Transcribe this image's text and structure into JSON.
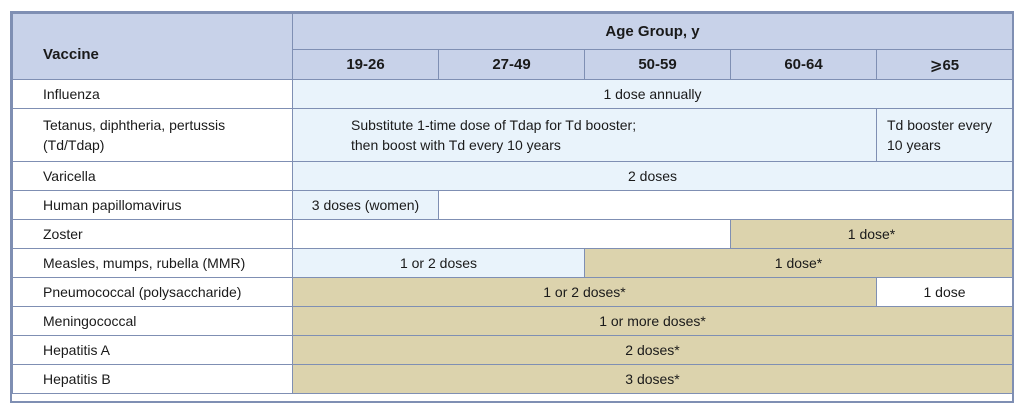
{
  "header": {
    "vaccine_label": "Vaccine",
    "age_group_label": "Age Group, y",
    "age_groups": [
      "19-26",
      "27-49",
      "50-59",
      "60-64",
      "⩾65"
    ]
  },
  "rows": {
    "influenza": {
      "name": "Influenza",
      "all": "1 dose annually"
    },
    "tdap": {
      "name_line1": "Tetanus, diphtheria, pertussis",
      "name_line2": "(Td/Tdap)",
      "main_line1": "Substitute 1-time dose of Tdap for Td booster;",
      "main_line2": "then boost with Td every 10 years",
      "senior_line1": "Td booster every",
      "senior_line2": "10 years"
    },
    "varicella": {
      "name": "Varicella",
      "all": "2 doses"
    },
    "hpv": {
      "name": "Human papillomavirus",
      "young": "3 doses (women)",
      "rest": ""
    },
    "zoster": {
      "name": "Zoster",
      "young": "",
      "older": "1 dose*"
    },
    "mmr": {
      "name": "Measles, mumps, rubella (MMR)",
      "young": "1 or 2 doses",
      "older": "1 dose*"
    },
    "pneumococcal": {
      "name": "Pneumococcal (polysaccharide)",
      "under65": "1 or 2 doses*",
      "senior": "1 dose"
    },
    "meningococcal": {
      "name": "Meningococcal",
      "all": "1 or more doses*"
    },
    "hepA": {
      "name": "Hepatitis A",
      "all": "2 doses*"
    },
    "hepB": {
      "name": "Hepatitis B",
      "all": "3 doses*"
    }
  },
  "colors": {
    "header_bg": "#c8d2e9",
    "recommended_all_bg": "#e9f3fb",
    "risk_factor_bg": "#dcd3ad",
    "border": "#7f8fb3"
  }
}
